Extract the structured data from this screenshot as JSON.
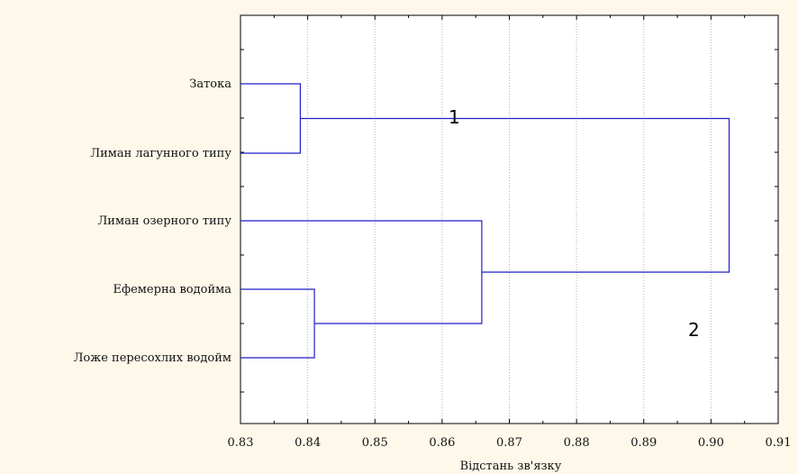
{
  "chart_data": {
    "type": "dendrogram",
    "xlabel": "Відстань зв'язку",
    "xlim": [
      0.83,
      0.91
    ],
    "xticks": [
      0.83,
      0.84,
      0.85,
      0.86,
      0.87,
      0.88,
      0.89,
      0.9,
      0.91
    ],
    "xtick_labels": [
      "0.83",
      "0.84",
      "0.85",
      "0.86",
      "0.87",
      "0.88",
      "0.89",
      "0.90",
      "0.91"
    ],
    "grid": true,
    "leaves": [
      "Затока",
      "Лиман лагунного типу",
      "Лиман озерного типу",
      "Ефемерна водойма",
      "Ложе пересохлих водойм"
    ],
    "merges": [
      {
        "left": "Затока",
        "right": "Лиман лагунного типу",
        "distance": 0.8389
      },
      {
        "left": "Ефемерна водойма",
        "right": "Ложе пересохлих водойм",
        "distance": 0.841
      },
      {
        "left": "Лиман озерного типу",
        "right": "cluster(Ефемерна водойма, Ложе пересохлих водойм)",
        "distance": 0.8659
      },
      {
        "left": "cluster(Затока, Лиман лагунного типу)",
        "right": "cluster(Лиман озерного типу, Ефемерна водойма, Ложе пересохлих водойм)",
        "distance": 0.9027
      }
    ],
    "annotations": [
      "1",
      "2"
    ],
    "line_color": "#1f1fc8"
  }
}
